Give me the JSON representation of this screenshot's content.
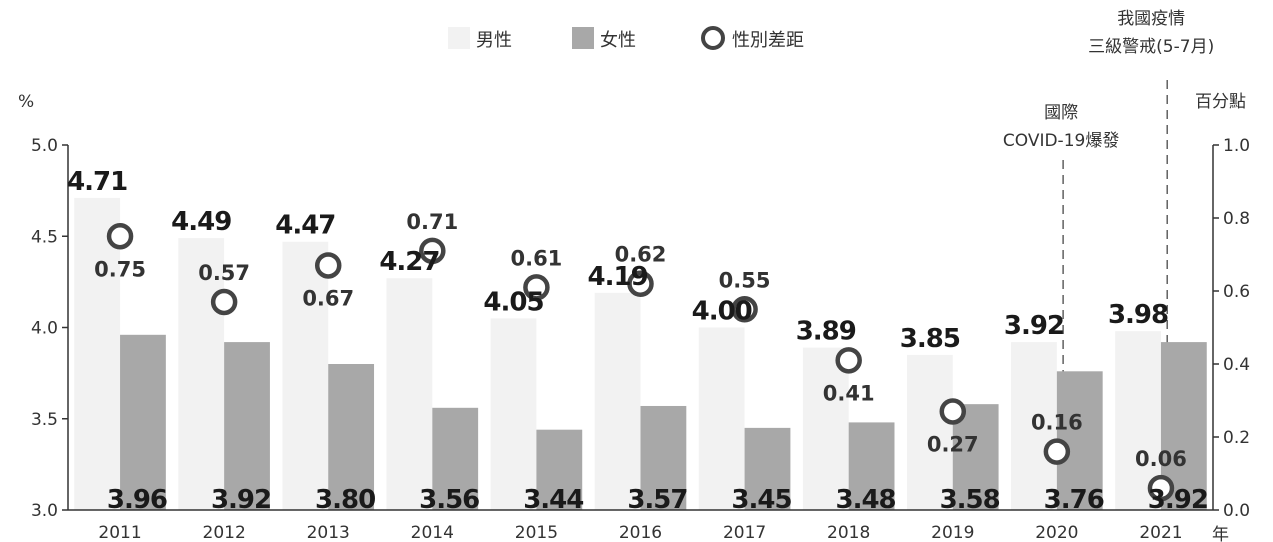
{
  "chart_data": {
    "type": "bar",
    "categories": [
      "2011",
      "2012",
      "2013",
      "2014",
      "2015",
      "2016",
      "2017",
      "2018",
      "2019",
      "2020",
      "2021"
    ],
    "series": [
      {
        "name": "男性",
        "values": [
          4.71,
          4.49,
          4.47,
          4.27,
          4.05,
          4.19,
          4.0,
          3.89,
          3.85,
          3.92,
          3.98
        ],
        "labels": [
          "4.71",
          "4.49",
          "4.47",
          "4.27",
          "4.05",
          "4.19",
          "4.00",
          "3.89",
          "3.85",
          "3.92",
          "3.98"
        ]
      },
      {
        "name": "女性",
        "values": [
          3.96,
          3.92,
          3.8,
          3.56,
          3.44,
          3.57,
          3.45,
          3.48,
          3.58,
          3.76,
          3.92
        ],
        "labels": [
          "3.96",
          "3.92",
          "3.80",
          "3.56",
          "3.44",
          "3.57",
          "3.45",
          "3.48",
          "3.58",
          "3.76",
          "3.92"
        ]
      },
      {
        "name": "性別差距",
        "axis": "right",
        "values": [
          0.75,
          0.57,
          0.67,
          0.71,
          0.61,
          0.62,
          0.55,
          0.41,
          0.27,
          0.16,
          0.06
        ],
        "labels": [
          "0.75",
          "0.57",
          "0.67",
          "0.71",
          "0.61",
          "0.62",
          "0.55",
          "0.41",
          "0.27",
          "0.16",
          "0.06"
        ]
      }
    ],
    "ylabel_left": "%",
    "ylabel_right": "百分點",
    "xlabel": "年",
    "ylim_left": [
      3.0,
      5.0
    ],
    "ylim_right": [
      0.0,
      1.0
    ],
    "yticks_left": [
      "3.0",
      "3.5",
      "4.0",
      "4.5",
      "5.0"
    ],
    "yticks_right": [
      "0.0",
      "0.2",
      "0.4",
      "0.6",
      "0.8",
      "1.0"
    ],
    "annotations": [
      {
        "category": "2020",
        "lines": [
          "國際",
          "COVID-19爆發"
        ]
      },
      {
        "category": "2021",
        "lines": [
          "我國疫情",
          "三級警戒(5-7月)"
        ]
      }
    ],
    "legend": "top",
    "colors": {
      "male": "#f2f2f2",
      "female": "#a8a8a8",
      "gap_marker": "#444444"
    }
  }
}
